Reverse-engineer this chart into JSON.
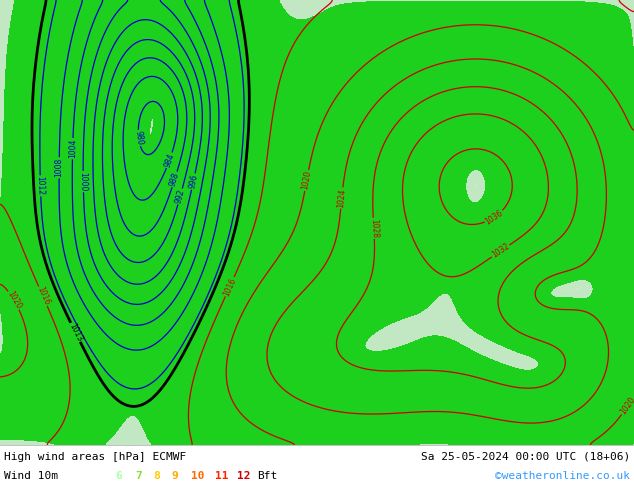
{
  "title_left": "High wind areas [hPa] ECMWF",
  "title_right": "Sa 25-05-2024 00:00 UTC (18+06)",
  "subtitle_left": "Wind 10m",
  "subtitle_right": "©weatheronline.co.uk",
  "legend_values": [
    "6",
    "7",
    "8",
    "9",
    "10",
    "11",
    "12"
  ],
  "legend_colors": [
    "#aaffaa",
    "#77cc55",
    "#ffdd00",
    "#ffaa00",
    "#ff6600",
    "#ff2200",
    "#cc0000"
  ],
  "legend_unit": "Bft",
  "ocean_color": "#d8d8d8",
  "land_color": "#c8eaaa",
  "wind6_color": "#c0f0c0",
  "wind7_color": "#90d890",
  "wind8_color": "#60c060",
  "wind9_color": "#00cc44",
  "wind10_color": "#44ddaa",
  "wind11_color": "#00bbbb",
  "wind12_color": "#0088cc",
  "contour_black": "#000000",
  "contour_red": "#cc0000",
  "contour_blue": "#0000cc",
  "text_color": "#000000",
  "legend_bg": "#ffffff"
}
